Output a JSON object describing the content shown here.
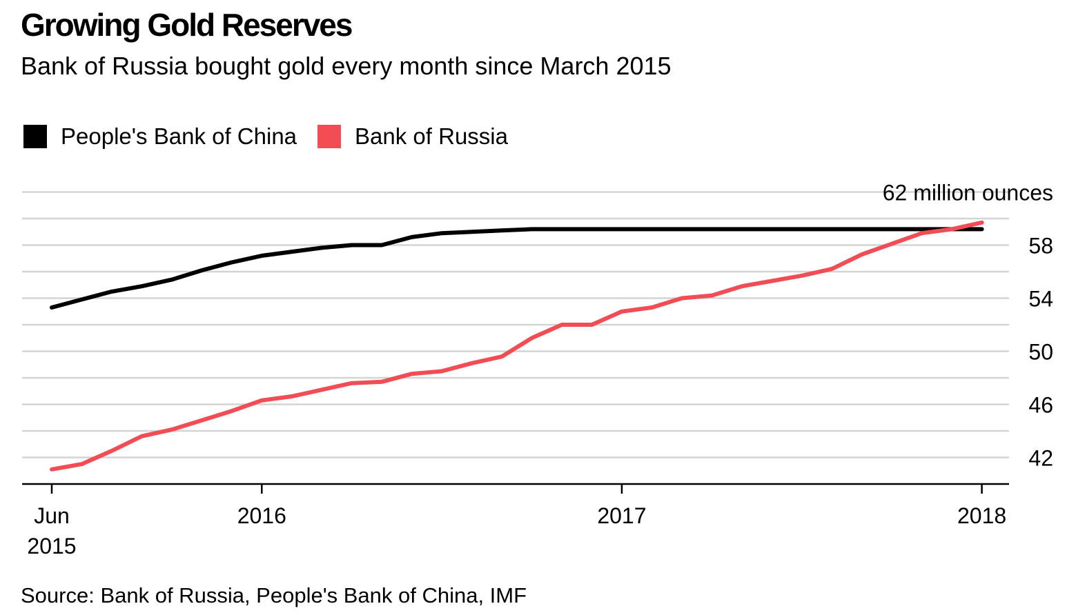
{
  "chart_data": {
    "type": "line",
    "title": "Growing Gold Reserves",
    "subtitle": "Bank of Russia bought gold every month since March 2015",
    "unit_label": "62 million ounces",
    "source": "Source: Bank of Russia, People's Bank of China, IMF",
    "ylim": [
      40,
      62
    ],
    "yticks": [
      42,
      46,
      50,
      54,
      58
    ],
    "grid": true,
    "legend_position": "top-left",
    "x": [
      "2015-06",
      "2015-07",
      "2015-08",
      "2015-09",
      "2015-10",
      "2015-11",
      "2015-12",
      "2016-01",
      "2016-02",
      "2016-03",
      "2016-04",
      "2016-05",
      "2016-06",
      "2016-07",
      "2016-08",
      "2016-09",
      "2016-10",
      "2016-11",
      "2016-12",
      "2017-01",
      "2017-02",
      "2017-03",
      "2017-04",
      "2017-05",
      "2017-06",
      "2017-07",
      "2017-08",
      "2017-09",
      "2017-10",
      "2017-11",
      "2017-12",
      "2018-01",
      "2018-02"
    ],
    "xtick_labels": [
      {
        "x": "2015-06",
        "lines": [
          "Jun",
          "2015"
        ]
      },
      {
        "x": "2016-01",
        "lines": [
          "2016"
        ]
      },
      {
        "x": "2017-01",
        "lines": [
          "2017"
        ]
      },
      {
        "x": "2018-01",
        "lines": [
          "2018"
        ]
      }
    ],
    "series": [
      {
        "name": "People's Bank of China",
        "color": "#000000",
        "values": [
          53.3,
          53.9,
          54.5,
          54.9,
          55.4,
          56.1,
          56.7,
          57.2,
          57.5,
          57.8,
          58.0,
          58.0,
          58.6,
          58.9,
          59.0,
          59.1,
          59.2,
          59.2,
          59.2,
          59.2,
          59.2,
          59.2,
          59.2,
          59.2,
          59.2,
          59.2,
          59.2,
          59.2,
          59.2,
          59.2,
          59.2,
          59.2,
          null
        ]
      },
      {
        "name": "Bank of Russia",
        "color": "#f24c54",
        "values": [
          41.1,
          41.5,
          42.5,
          43.6,
          44.1,
          44.8,
          45.5,
          46.3,
          46.6,
          47.1,
          47.6,
          47.7,
          48.3,
          48.5,
          49.1,
          49.6,
          51.0,
          52.0,
          52.0,
          53.0,
          53.3,
          54.0,
          54.2,
          54.9,
          55.3,
          55.7,
          56.2,
          57.3,
          58.1,
          58.9,
          59.2,
          59.7,
          null
        ]
      }
    ]
  }
}
